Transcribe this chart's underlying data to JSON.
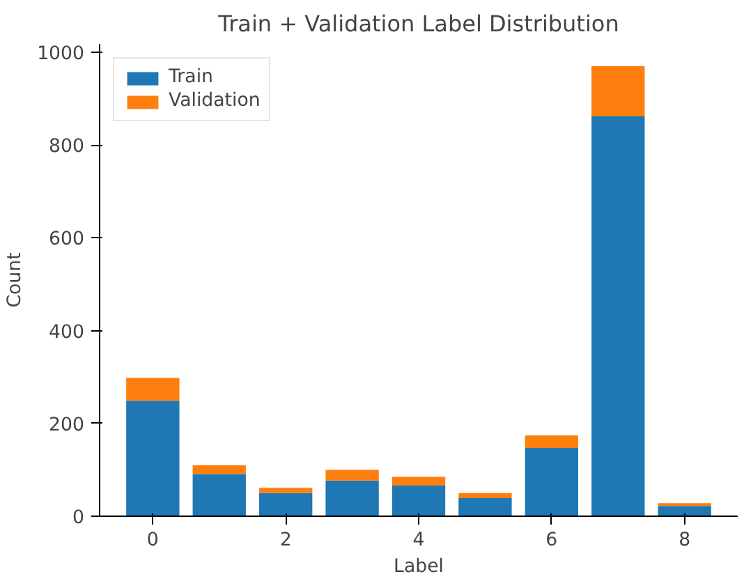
{
  "chart_data": {
    "type": "bar",
    "title": "Train + Validation Label Distribution",
    "xlabel": "Label",
    "ylabel": "Count",
    "x": [
      0,
      1,
      2,
      3,
      4,
      5,
      6,
      7,
      8
    ],
    "stacked": true,
    "series": [
      {
        "name": "Train",
        "color": "#1f77b4",
        "values": [
          249,
          91,
          50,
          77,
          66,
          39,
          147,
          862,
          22
        ]
      },
      {
        "name": "Validation",
        "color": "#ff7f0e",
        "values": [
          49,
          19,
          11,
          23,
          19,
          11,
          27,
          108,
          6
        ]
      }
    ],
    "xlim": [
      -0.8,
      8.8
    ],
    "ylim": [
      0,
      1018
    ],
    "xticks": [
      0,
      2,
      4,
      6,
      8
    ],
    "yticks": [
      0,
      200,
      400,
      600,
      800,
      1000
    ],
    "grid": false,
    "legend": "top left"
  }
}
